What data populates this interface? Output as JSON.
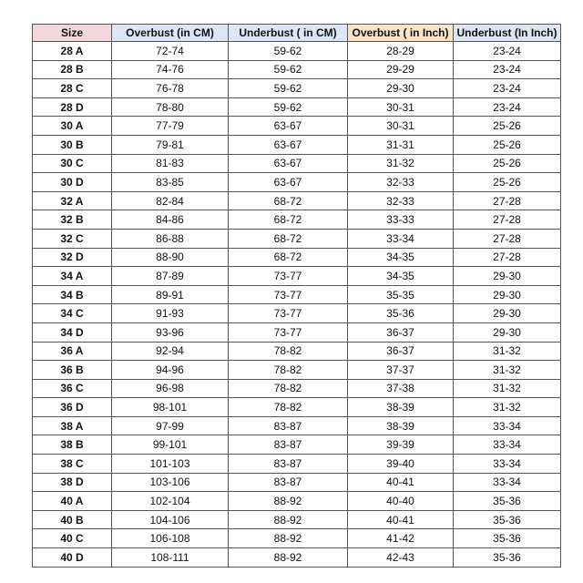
{
  "table": {
    "header": [
      "Size",
      "Overbust (in CM)",
      "Underbust ( in CM)",
      "Overbust ( in Inch)",
      "Underbust (In Inch)"
    ],
    "rows": [
      [
        "28 A",
        "72-74",
        "59-62",
        "28-29",
        "23-24"
      ],
      [
        "28 B",
        "74-76",
        "59-62",
        "29-29",
        "23-24"
      ],
      [
        "28 C",
        "76-78",
        "59-62",
        "29-30",
        "23-24"
      ],
      [
        "28 D",
        "78-80",
        "59-62",
        "30-31",
        "23-24"
      ],
      [
        "30 A",
        "77-79",
        "63-67",
        "30-31",
        "25-26"
      ],
      [
        "30 B",
        "79-81",
        "63-67",
        "31-31",
        "25-26"
      ],
      [
        "30 C",
        "81-83",
        "63-67",
        "31-32",
        "25-26"
      ],
      [
        "30 D",
        "83-85",
        "63-67",
        "32-33",
        "25-26"
      ],
      [
        "32 A",
        "82-84",
        "68-72",
        "32-33",
        "27-28"
      ],
      [
        "32 B",
        "84-86",
        "68-72",
        "33-33",
        "27-28"
      ],
      [
        "32 C",
        "86-88",
        "68-72",
        "33-34",
        "27-28"
      ],
      [
        "32 D",
        "88-90",
        "68-72",
        "34-35",
        "27-28"
      ],
      [
        "34 A",
        "87-89",
        "73-77",
        "34-35",
        "29-30"
      ],
      [
        "34 B",
        "89-91",
        "73-77",
        "35-35",
        "29-30"
      ],
      [
        "34 C",
        "91-93",
        "73-77",
        "35-36",
        "29-30"
      ],
      [
        "34 D",
        "93-96",
        "73-77",
        "36-37",
        "29-30"
      ],
      [
        "36 A",
        "92-94",
        "78-82",
        "36-37",
        "31-32"
      ],
      [
        "36 B",
        "94-96",
        "78-82",
        "37-37",
        "31-32"
      ],
      [
        "36 C",
        "96-98",
        "78-82",
        "37-38",
        "31-32"
      ],
      [
        "36 D",
        "98-101",
        "78-82",
        "38-39",
        "31-32"
      ],
      [
        "38 A",
        "97-99",
        "83-87",
        "38-39",
        "33-34"
      ],
      [
        "38 B",
        "99-101",
        "83-87",
        "39-39",
        "33-34"
      ],
      [
        "38 C",
        "101-103",
        "83-87",
        "39-40",
        "33-34"
      ],
      [
        "38 D",
        "103-106",
        "83-87",
        "40-41",
        "33-34"
      ],
      [
        "40 A",
        "102-104",
        "88-92",
        "40-40",
        "35-36"
      ],
      [
        "40 B",
        "104-106",
        "88-92",
        "40-41",
        "35-36"
      ],
      [
        "40 C",
        "106-108",
        "88-92",
        "41-42",
        "35-36"
      ],
      [
        "40 D",
        "108-111",
        "88-92",
        "42-43",
        "35-36"
      ]
    ]
  }
}
